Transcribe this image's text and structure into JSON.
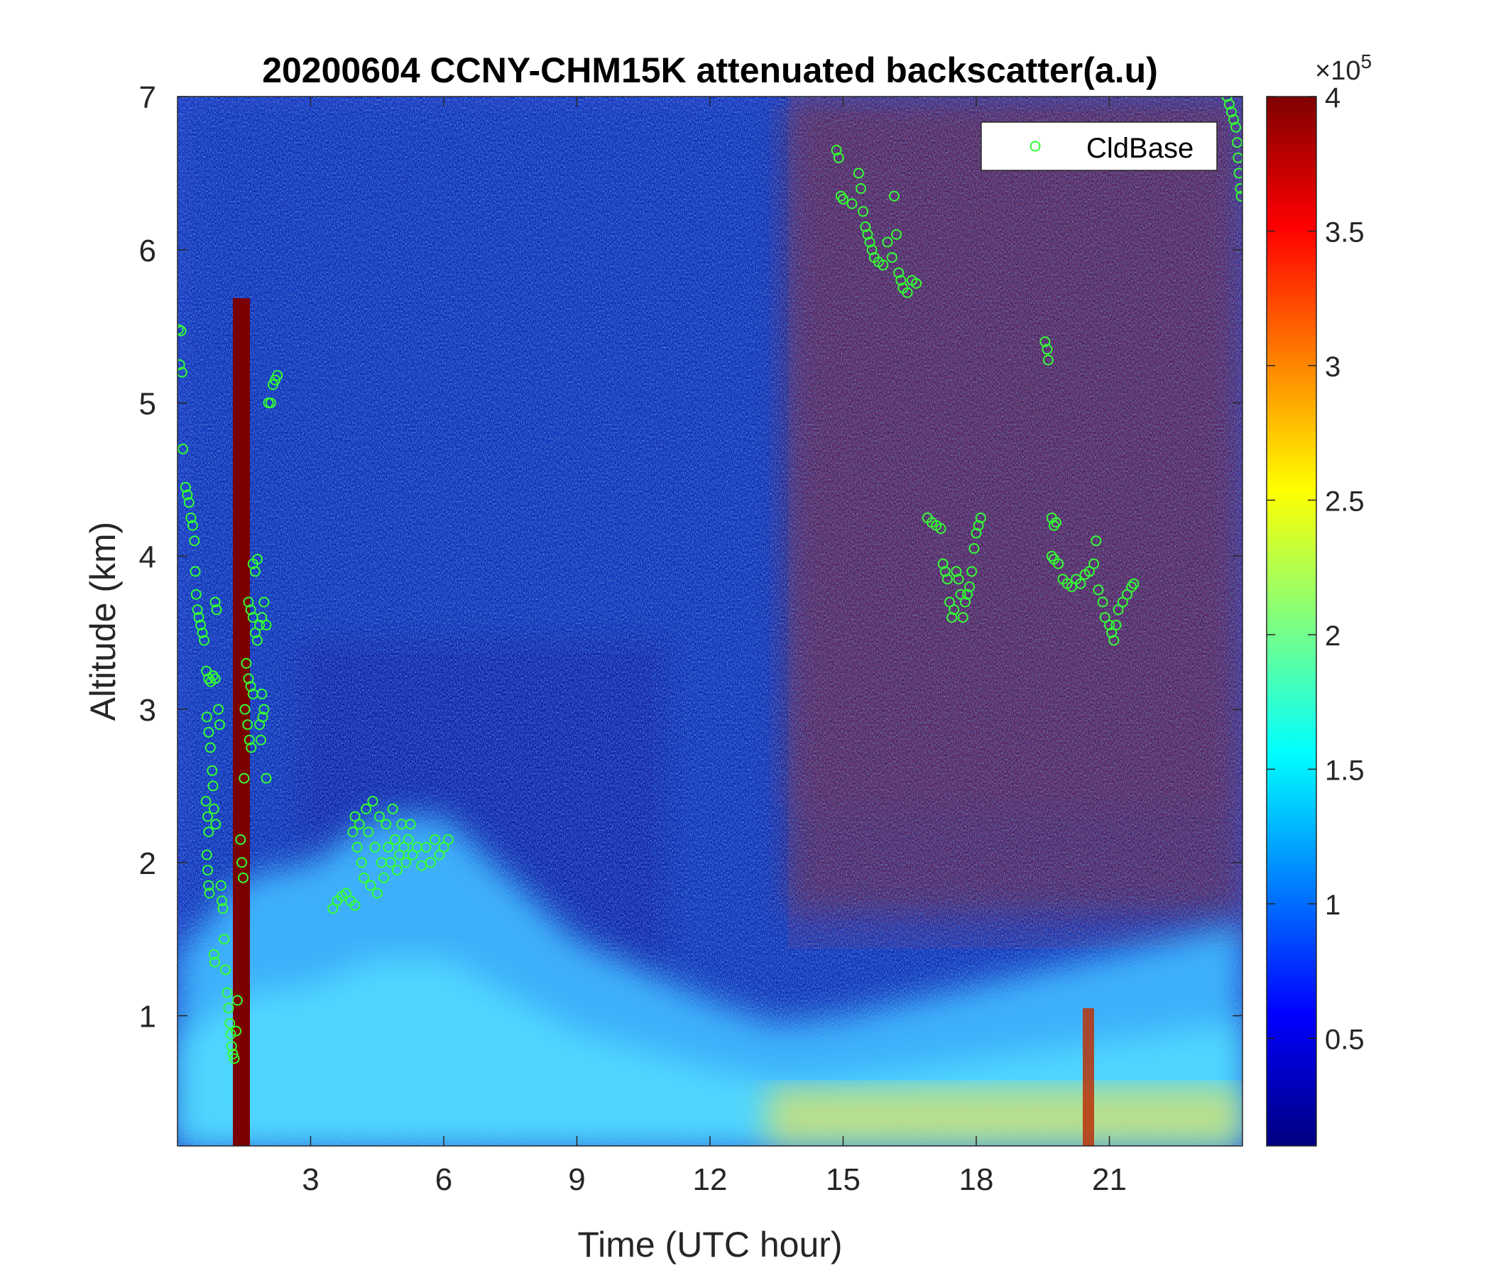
{
  "chart_data": {
    "type": "heatmap",
    "title": "20200604 CCNY-CHM15K attenuated backscatter(a.u)",
    "xlabel": "Time (UTC hour)",
    "ylabel": "Altitude (km)",
    "xlim": [
      0,
      24
    ],
    "ylim": [
      0.15,
      7
    ],
    "xticks": [
      3,
      6,
      9,
      12,
      15,
      18,
      21
    ],
    "yticks": [
      1,
      2,
      3,
      4,
      5,
      6,
      7
    ],
    "colorbar": {
      "colormap": "jet",
      "clim": [
        0.1,
        4
      ],
      "ticks": [
        0.5,
        1,
        1.5,
        2,
        2.5,
        3,
        3.5,
        4
      ],
      "exponent_label": "×10",
      "exponent_power": "5"
    },
    "legend": {
      "location": "top-right",
      "entries": [
        {
          "name": "CldBase",
          "marker": "circle",
          "color": "#33ff33"
        }
      ]
    },
    "marker_color": "#33ff33",
    "background_field": {
      "description_of_features": "dark-blue noisy field aloft; cyan/yellow boundary layer below ~2.3 km; dark-red high-signal cloud regions 14.5-24 h above 3 km",
      "boundary_layer_top_km": [
        [
          0,
          1.4
        ],
        [
          1.5,
          1.9
        ],
        [
          3,
          2.0
        ],
        [
          4.5,
          2.3
        ],
        [
          6,
          2.3
        ],
        [
          7.5,
          1.9
        ],
        [
          9,
          1.5
        ],
        [
          10.5,
          1.3
        ],
        [
          12,
          1.1
        ],
        [
          13.5,
          0.95
        ],
        [
          15,
          1.0
        ],
        [
          16.5,
          1.1
        ],
        [
          18,
          1.2
        ],
        [
          19.5,
          1.3
        ],
        [
          21,
          1.4
        ],
        [
          22.5,
          1.5
        ],
        [
          24,
          1.6
        ]
      ]
    },
    "series": [
      {
        "name": "CldBase",
        "points": [
          [
            0.02,
            5.48
          ],
          [
            0.08,
            5.47
          ],
          [
            0.05,
            5.25
          ],
          [
            0.1,
            5.2
          ],
          [
            0.12,
            4.7
          ],
          [
            0.18,
            4.45
          ],
          [
            0.22,
            4.4
          ],
          [
            0.26,
            4.35
          ],
          [
            0.3,
            4.25
          ],
          [
            0.34,
            4.2
          ],
          [
            0.38,
            4.1
          ],
          [
            0.4,
            3.9
          ],
          [
            0.42,
            3.75
          ],
          [
            0.45,
            3.65
          ],
          [
            0.48,
            3.6
          ],
          [
            0.52,
            3.55
          ],
          [
            0.56,
            3.5
          ],
          [
            0.6,
            3.45
          ],
          [
            0.65,
            3.25
          ],
          [
            0.7,
            3.2
          ],
          [
            0.75,
            3.18
          ],
          [
            0.8,
            3.22
          ],
          [
            0.85,
            3.2
          ],
          [
            0.66,
            2.95
          ],
          [
            0.7,
            2.85
          ],
          [
            0.74,
            2.75
          ],
          [
            0.78,
            2.6
          ],
          [
            0.8,
            2.5
          ],
          [
            0.82,
            2.35
          ],
          [
            0.86,
            2.25
          ],
          [
            0.64,
            2.4
          ],
          [
            0.68,
            2.3
          ],
          [
            0.7,
            2.2
          ],
          [
            0.66,
            2.05
          ],
          [
            0.68,
            1.95
          ],
          [
            0.7,
            1.85
          ],
          [
            0.72,
            1.8
          ],
          [
            0.85,
            3.7
          ],
          [
            0.88,
            3.65
          ],
          [
            0.92,
            3.0
          ],
          [
            0.95,
            2.9
          ],
          [
            0.98,
            1.85
          ],
          [
            1.0,
            1.75
          ],
          [
            1.02,
            1.7
          ],
          [
            1.05,
            1.5
          ],
          [
            1.08,
            1.3
          ],
          [
            1.12,
            1.15
          ],
          [
            1.15,
            1.05
          ],
          [
            1.18,
            0.95
          ],
          [
            1.2,
            0.88
          ],
          [
            1.22,
            0.8
          ],
          [
            1.25,
            0.75
          ],
          [
            1.28,
            0.72
          ],
          [
            1.32,
            0.9
          ],
          [
            1.35,
            1.1
          ],
          [
            0.82,
            1.4
          ],
          [
            0.84,
            1.35
          ],
          [
            1.55,
            3.3
          ],
          [
            1.6,
            3.2
          ],
          [
            1.65,
            3.15
          ],
          [
            1.7,
            3.1
          ],
          [
            1.52,
            3.0
          ],
          [
            1.58,
            2.9
          ],
          [
            1.62,
            2.8
          ],
          [
            1.66,
            2.75
          ],
          [
            1.5,
            2.55
          ],
          [
            1.45,
            2.0
          ],
          [
            1.42,
            2.15
          ],
          [
            1.48,
            1.9
          ],
          [
            1.6,
            3.7
          ],
          [
            1.65,
            3.65
          ],
          [
            1.7,
            3.6
          ],
          [
            1.75,
            3.5
          ],
          [
            1.8,
            3.45
          ],
          [
            1.85,
            3.55
          ],
          [
            1.7,
            3.95
          ],
          [
            1.75,
            3.9
          ],
          [
            1.8,
            3.98
          ],
          [
            1.9,
            3.6
          ],
          [
            1.95,
            3.7
          ],
          [
            2.0,
            3.55
          ],
          [
            1.9,
            3.1
          ],
          [
            1.95,
            3.0
          ],
          [
            1.85,
            2.9
          ],
          [
            1.88,
            2.8
          ],
          [
            1.92,
            2.95
          ],
          [
            2.0,
            2.55
          ],
          [
            2.05,
            5.0
          ],
          [
            2.1,
            5.0
          ],
          [
            2.15,
            5.12
          ],
          [
            2.2,
            5.15
          ],
          [
            2.25,
            5.18
          ],
          [
            3.5,
            1.7
          ],
          [
            3.6,
            1.75
          ],
          [
            3.7,
            1.78
          ],
          [
            3.8,
            1.8
          ],
          [
            3.9,
            1.75
          ],
          [
            4.0,
            1.72
          ],
          [
            3.95,
            2.2
          ],
          [
            4.0,
            2.3
          ],
          [
            4.05,
            2.1
          ],
          [
            4.1,
            2.25
          ],
          [
            4.15,
            2.0
          ],
          [
            4.2,
            1.9
          ],
          [
            4.25,
            2.35
          ],
          [
            4.3,
            2.2
          ],
          [
            4.35,
            1.85
          ],
          [
            4.4,
            2.4
          ],
          [
            4.45,
            2.1
          ],
          [
            4.5,
            1.8
          ],
          [
            4.55,
            2.3
          ],
          [
            4.6,
            2.0
          ],
          [
            4.65,
            1.9
          ],
          [
            4.7,
            2.25
          ],
          [
            4.75,
            2.1
          ],
          [
            4.8,
            2.0
          ],
          [
            4.85,
            2.35
          ],
          [
            4.9,
            2.15
          ],
          [
            4.95,
            1.95
          ],
          [
            5.0,
            2.05
          ],
          [
            5.05,
            2.25
          ],
          [
            5.1,
            2.1
          ],
          [
            5.15,
            2.0
          ],
          [
            5.2,
            2.15
          ],
          [
            5.25,
            2.25
          ],
          [
            5.3,
            2.05
          ],
          [
            5.4,
            2.1
          ],
          [
            5.5,
            1.98
          ],
          [
            5.6,
            2.1
          ],
          [
            5.7,
            2.0
          ],
          [
            5.8,
            2.15
          ],
          [
            5.9,
            2.05
          ],
          [
            6.0,
            2.1
          ],
          [
            6.1,
            2.15
          ],
          [
            14.85,
            6.65
          ],
          [
            14.9,
            6.6
          ],
          [
            14.95,
            6.35
          ],
          [
            15.0,
            6.33
          ],
          [
            15.2,
            6.3
          ],
          [
            15.35,
            6.5
          ],
          [
            15.4,
            6.4
          ],
          [
            15.45,
            6.25
          ],
          [
            15.5,
            6.15
          ],
          [
            15.55,
            6.1
          ],
          [
            15.6,
            6.05
          ],
          [
            15.65,
            6.0
          ],
          [
            15.7,
            5.95
          ],
          [
            15.8,
            5.92
          ],
          [
            15.9,
            5.9
          ],
          [
            16.0,
            6.05
          ],
          [
            16.1,
            5.95
          ],
          [
            16.15,
            6.35
          ],
          [
            16.2,
            6.1
          ],
          [
            16.25,
            5.85
          ],
          [
            16.3,
            5.8
          ],
          [
            16.35,
            5.75
          ],
          [
            16.45,
            5.72
          ],
          [
            16.55,
            5.8
          ],
          [
            16.65,
            5.78
          ],
          [
            16.9,
            4.25
          ],
          [
            17.0,
            4.22
          ],
          [
            17.1,
            4.2
          ],
          [
            17.2,
            4.18
          ],
          [
            17.25,
            3.95
          ],
          [
            17.3,
            3.9
          ],
          [
            17.35,
            3.85
          ],
          [
            17.4,
            3.7
          ],
          [
            17.45,
            3.6
          ],
          [
            17.5,
            3.65
          ],
          [
            17.55,
            3.9
          ],
          [
            17.6,
            3.85
          ],
          [
            17.65,
            3.75
          ],
          [
            17.7,
            3.6
          ],
          [
            17.75,
            3.7
          ],
          [
            17.8,
            3.75
          ],
          [
            17.85,
            3.8
          ],
          [
            17.9,
            3.9
          ],
          [
            17.95,
            4.05
          ],
          [
            18.0,
            4.15
          ],
          [
            18.05,
            4.2
          ],
          [
            18.1,
            4.25
          ],
          [
            19.55,
            5.4
          ],
          [
            19.6,
            5.35
          ],
          [
            19.62,
            5.28
          ],
          [
            19.7,
            4.25
          ],
          [
            19.75,
            4.2
          ],
          [
            19.8,
            4.22
          ],
          [
            19.7,
            4.0
          ],
          [
            19.75,
            3.98
          ],
          [
            19.85,
            3.95
          ],
          [
            19.95,
            3.85
          ],
          [
            20.05,
            3.82
          ],
          [
            20.15,
            3.8
          ],
          [
            20.25,
            3.85
          ],
          [
            20.35,
            3.82
          ],
          [
            20.45,
            3.88
          ],
          [
            20.55,
            3.9
          ],
          [
            20.65,
            3.95
          ],
          [
            20.7,
            4.1
          ],
          [
            20.75,
            3.78
          ],
          [
            20.85,
            3.7
          ],
          [
            20.9,
            3.6
          ],
          [
            21.0,
            3.55
          ],
          [
            21.05,
            3.5
          ],
          [
            21.1,
            3.45
          ],
          [
            21.15,
            3.55
          ],
          [
            21.2,
            3.65
          ],
          [
            21.3,
            3.7
          ],
          [
            21.4,
            3.75
          ],
          [
            21.5,
            3.8
          ],
          [
            21.55,
            3.82
          ],
          [
            23.65,
            7.0
          ],
          [
            23.7,
            6.95
          ],
          [
            23.75,
            6.9
          ],
          [
            23.8,
            6.85
          ],
          [
            23.85,
            6.8
          ],
          [
            23.88,
            6.7
          ],
          [
            23.9,
            6.6
          ],
          [
            23.92,
            6.5
          ],
          [
            23.95,
            6.4
          ],
          [
            23.97,
            6.35
          ]
        ]
      }
    ]
  }
}
